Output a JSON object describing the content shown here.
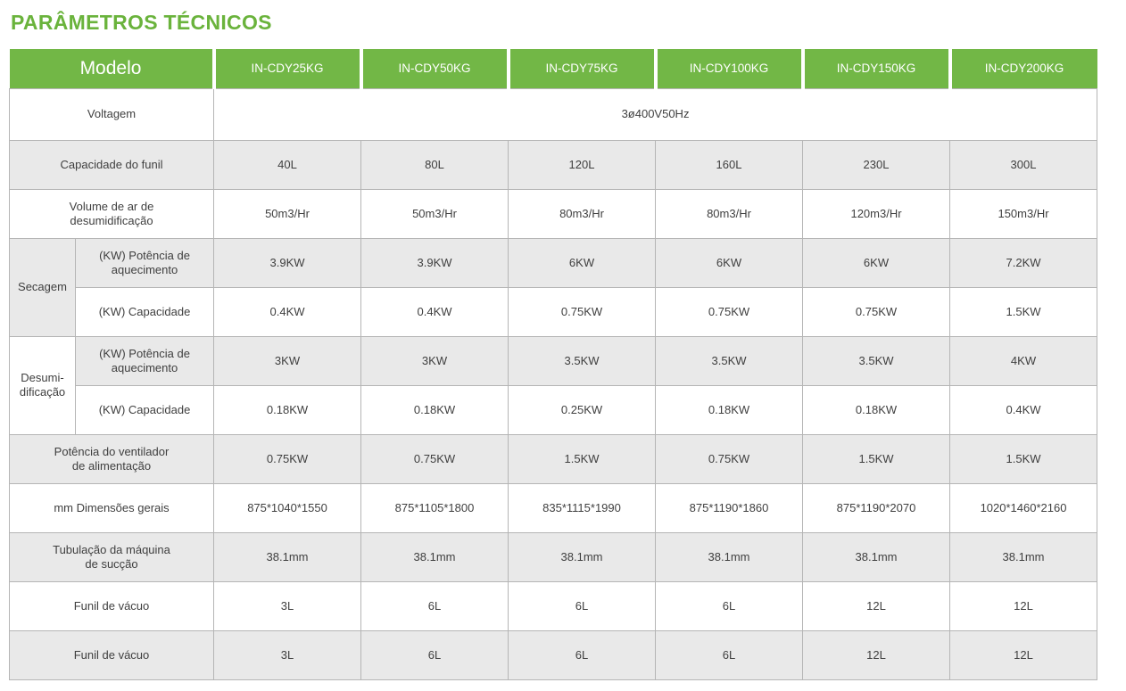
{
  "colors": {
    "title_green": "#6ab33c",
    "header_green": "#72b746",
    "row_gray": "#e9e9e9",
    "row_white": "#ffffff",
    "border_gray": "#b5b5b5",
    "text_dark": "#3f3f3f",
    "header_text": "#ffffff"
  },
  "title": "PARÂMETROS TÉCNICOS",
  "header": {
    "model_label": "Modelo",
    "models": [
      "IN-CDY25KG",
      "IN-CDY50KG",
      "IN-CDY75KG",
      "IN-CDY100KG",
      "IN-CDY150KG",
      "IN-CDY200KG"
    ]
  },
  "rows": {
    "voltage": {
      "label": "Voltagem",
      "value": "3ø400V50Hz"
    },
    "hopper": {
      "label": "Capacidade do funil",
      "values": [
        "40L",
        "80L",
        "120L",
        "160L",
        "230L",
        "300L"
      ]
    },
    "airflow": {
      "label": "Volume de ar de\ndesumidificação",
      "values": [
        "50m3/Hr",
        "50m3/Hr",
        "80m3/Hr",
        "80m3/Hr",
        "120m3/Hr",
        "150m3/Hr"
      ]
    },
    "drying": {
      "group": "Secagem",
      "heating": {
        "label": "(KW) Potência de\naquecimento",
        "values": [
          "3.9KW",
          "3.9KW",
          "6KW",
          "6KW",
          "6KW",
          "7.2KW"
        ]
      },
      "capacity": {
        "label": "(KW) Capacidade",
        "values": [
          "0.4KW",
          "0.4KW",
          "0.75KW",
          "0.75KW",
          "0.75KW",
          "1.5KW"
        ]
      }
    },
    "dehumid": {
      "group": "Desumi-\ndificação",
      "heating": {
        "label": "(KW) Potência de\naquecimento",
        "values": [
          "3KW",
          "3KW",
          "3.5KW",
          "3.5KW",
          "3.5KW",
          "4KW"
        ]
      },
      "capacity": {
        "label": "(KW) Capacidade",
        "values": [
          "0.18KW",
          "0.18KW",
          "0.25KW",
          "0.18KW",
          "0.18KW",
          "0.4KW"
        ]
      }
    },
    "fan": {
      "label": "Potência do ventilador\nde alimentação",
      "values": [
        "0.75KW",
        "0.75KW",
        "1.5KW",
        "0.75KW",
        "1.5KW",
        "1.5KW"
      ]
    },
    "dimensions": {
      "label": "mm Dimensões gerais",
      "values": [
        "875*1040*1550",
        "875*1105*1800",
        "835*1115*1990",
        "875*1190*1860",
        "875*1190*2070",
        "1020*1460*2160"
      ]
    },
    "piping": {
      "label": "Tubulação da máquina\nde sucção",
      "values": [
        "38.1mm",
        "38.1mm",
        "38.1mm",
        "38.1mm",
        "38.1mm",
        "38.1mm"
      ]
    },
    "vacuum1": {
      "label": "Funil de vácuo",
      "values": [
        "3L",
        "6L",
        "6L",
        "6L",
        "12L",
        "12L"
      ]
    },
    "vacuum2": {
      "label": "Funil de vácuo",
      "values": [
        "3L",
        "6L",
        "6L",
        "6L",
        "12L",
        "12L"
      ]
    }
  }
}
